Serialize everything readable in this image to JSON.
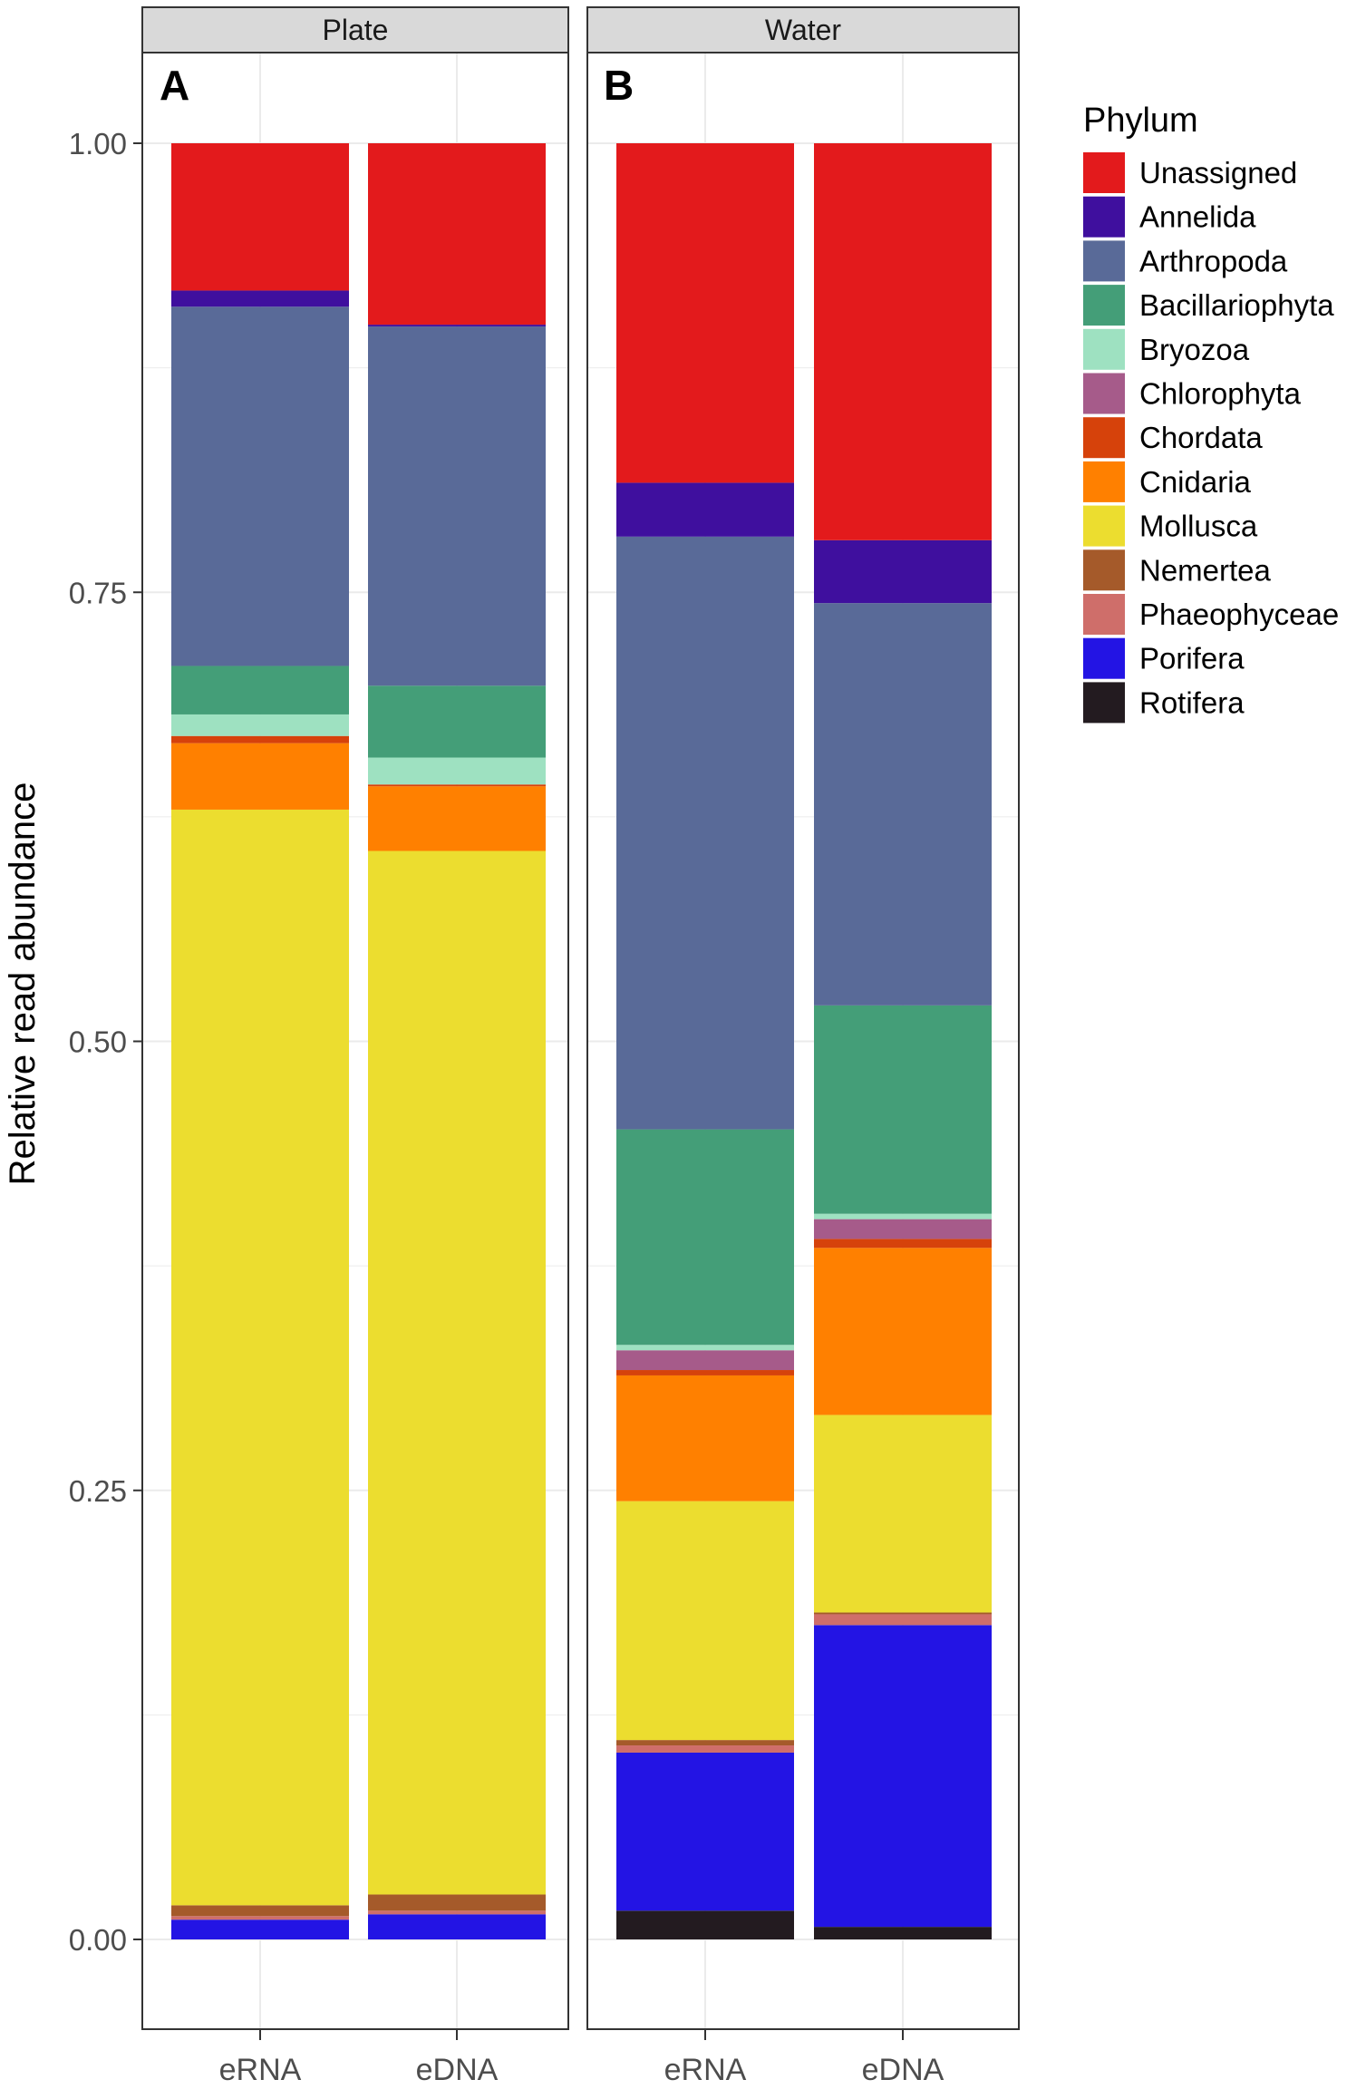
{
  "chart_data": {
    "type": "bar",
    "stacked": true,
    "ylabel": "Relative read abundance",
    "xlabel": "",
    "ylim": [
      -0.05,
      1.05
    ],
    "yticks": [
      {
        "value": 0.0,
        "label": "0.00"
      },
      {
        "value": 0.25,
        "label": "0.25"
      },
      {
        "value": 0.5,
        "label": "0.50"
      },
      {
        "value": 0.75,
        "label": "0.75"
      },
      {
        "value": 1.0,
        "label": "1.00"
      }
    ],
    "grid": true,
    "legend_position": "right",
    "legend_title": "Phylum",
    "phyla": [
      {
        "name": "Unassigned",
        "color": "#e31a1c"
      },
      {
        "name": "Annelida",
        "color": "#3f0f9e"
      },
      {
        "name": "Arthropoda",
        "color": "#596a98"
      },
      {
        "name": "Bacillariophyta",
        "color": "#449e78"
      },
      {
        "name": "Bryozoa",
        "color": "#9ee1c1"
      },
      {
        "name": "Chlorophyta",
        "color": "#a65b8a"
      },
      {
        "name": "Chordata",
        "color": "#d6420b"
      },
      {
        "name": "Cnidaria",
        "color": "#ff8000"
      },
      {
        "name": "Mollusca",
        "color": "#ecdd2f"
      },
      {
        "name": "Nemertea",
        "color": "#a55a2a"
      },
      {
        "name": "Phaeophyceae",
        "color": "#cf6e6a"
      },
      {
        "name": "Porifera",
        "color": "#2314e4"
      },
      {
        "name": "Rotifera",
        "color": "#231b20"
      }
    ],
    "facets": [
      {
        "title": "Plate",
        "panel_label": "A",
        "categories": [
          "eRNA",
          "eDNA"
        ],
        "bars": [
          {
            "category": "eRNA",
            "values": {
              "Rotifera": 0.0,
              "Porifera": 0.011,
              "Phaeophyceae": 0.002,
              "Nemertea": 0.006,
              "Mollusca": 0.61,
              "Cnidaria": 0.037,
              "Chordata": 0.004,
              "Chlorophyta": 0.0,
              "Bryozoa": 0.012,
              "Bacillariophyta": 0.027,
              "Arthropoda": 0.2,
              "Annelida": 0.009,
              "Unassigned": 0.082
            }
          },
          {
            "category": "eDNA",
            "values": {
              "Rotifera": 0.0,
              "Porifera": 0.014,
              "Phaeophyceae": 0.002,
              "Nemertea": 0.009,
              "Mollusca": 0.581,
              "Cnidaria": 0.036,
              "Chordata": 0.001,
              "Chlorophyta": 0.0,
              "Bryozoa": 0.015,
              "Bacillariophyta": 0.04,
              "Arthropoda": 0.2,
              "Annelida": 0.001,
              "Unassigned": 0.101
            }
          }
        ]
      },
      {
        "title": "Water",
        "panel_label": "B",
        "categories": [
          "eRNA",
          "eDNA"
        ],
        "bars": [
          {
            "category": "eRNA",
            "values": {
              "Rotifera": 0.016,
              "Porifera": 0.088,
              "Phaeophyceae": 0.004,
              "Nemertea": 0.003,
              "Mollusca": 0.133,
              "Cnidaria": 0.07,
              "Chordata": 0.003,
              "Chlorophyta": 0.011,
              "Bryozoa": 0.003,
              "Bacillariophyta": 0.12,
              "Arthropoda": 0.33,
              "Annelida": 0.03,
              "Unassigned": 0.189
            }
          },
          {
            "category": "eDNA",
            "values": {
              "Rotifera": 0.007,
              "Porifera": 0.168,
              "Phaeophyceae": 0.006,
              "Nemertea": 0.001,
              "Mollusca": 0.11,
              "Cnidaria": 0.093,
              "Chordata": 0.005,
              "Chlorophyta": 0.011,
              "Bryozoa": 0.003,
              "Bacillariophyta": 0.116,
              "Arthropoda": 0.224,
              "Annelida": 0.035,
              "Unassigned": 0.221
            }
          }
        ]
      }
    ]
  }
}
